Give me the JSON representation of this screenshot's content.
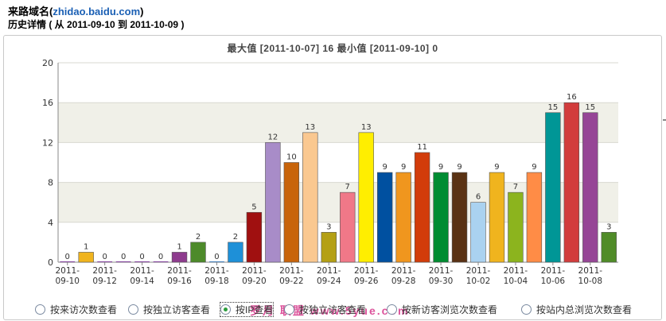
{
  "header": {
    "title_prefix": "来路域名(",
    "domain": "zhidao.baidu.com",
    "title_suffix": ")",
    "history": "历史详情 ( 从 2011-09-10 到 2011-10-09 )"
  },
  "chart_title": "最大值 [2011-10-07] 16   最小值 [2011-09-10] 0",
  "chart_data": {
    "type": "bar",
    "ylim": [
      0,
      20
    ],
    "yticks": [
      0,
      4,
      8,
      12,
      16,
      20
    ],
    "grid": true,
    "values": [
      0,
      1,
      0,
      0,
      0,
      0,
      1,
      2,
      0,
      2,
      5,
      12,
      10,
      13,
      3,
      7,
      13,
      9,
      9,
      11,
      9,
      9,
      6,
      9,
      7,
      9,
      15,
      16,
      15,
      3
    ],
    "colors": [
      "#7d3c98",
      "#f0b41e",
      "#7d3c98",
      "#7d3c98",
      "#7d3c98",
      "#7d3c98",
      "#8e3b8e",
      "#4d8a2a",
      "#3c78b4",
      "#1e90d8",
      "#a01010",
      "#a88cc8",
      "#c8640a",
      "#fac890",
      "#b4a014",
      "#f07888",
      "#ffee00",
      "#0050a0",
      "#f0961e",
      "#d23c0a",
      "#008c32",
      "#5a3214",
      "#aad2f0",
      "#f0b41e",
      "#8cb41e",
      "#ff8c46",
      "#009696",
      "#d23c3c",
      "#964696",
      "#508c28"
    ],
    "tick_labels": [
      {
        "top": "2011-",
        "bottom": "09-10"
      },
      {
        "top": "2011-",
        "bottom": "09-12"
      },
      {
        "top": "2011-",
        "bottom": "09-14"
      },
      {
        "top": "2011-",
        "bottom": "09-16"
      },
      {
        "top": "2011-",
        "bottom": "09-18"
      },
      {
        "top": "2011-",
        "bottom": "09-20"
      },
      {
        "top": "2011-",
        "bottom": "09-22"
      },
      {
        "top": "2011-",
        "bottom": "09-24"
      },
      {
        "top": "2011-",
        "bottom": "09-26"
      },
      {
        "top": "2011-",
        "bottom": "09-28"
      },
      {
        "top": "2011-",
        "bottom": "09-30"
      },
      {
        "top": "2011-",
        "bottom": "10-02"
      },
      {
        "top": "2011-",
        "bottom": "10-04"
      },
      {
        "top": "2011-",
        "bottom": "10-06"
      },
      {
        "top": "2011-",
        "bottom": "10-08"
      }
    ]
  },
  "options": [
    {
      "label": "按来访次数查看",
      "selected": false
    },
    {
      "label": "按独立访客查看",
      "selected": false
    },
    {
      "label": "按IP查看",
      "selected": true
    },
    {
      "label": "按独立访客查看",
      "selected": false
    },
    {
      "label": "按新访客浏览次数查看",
      "selected": false
    },
    {
      "label": "按站内总浏览次数查看",
      "selected": false
    }
  ],
  "watermark": "罗月 联盟 www.5yue.com"
}
